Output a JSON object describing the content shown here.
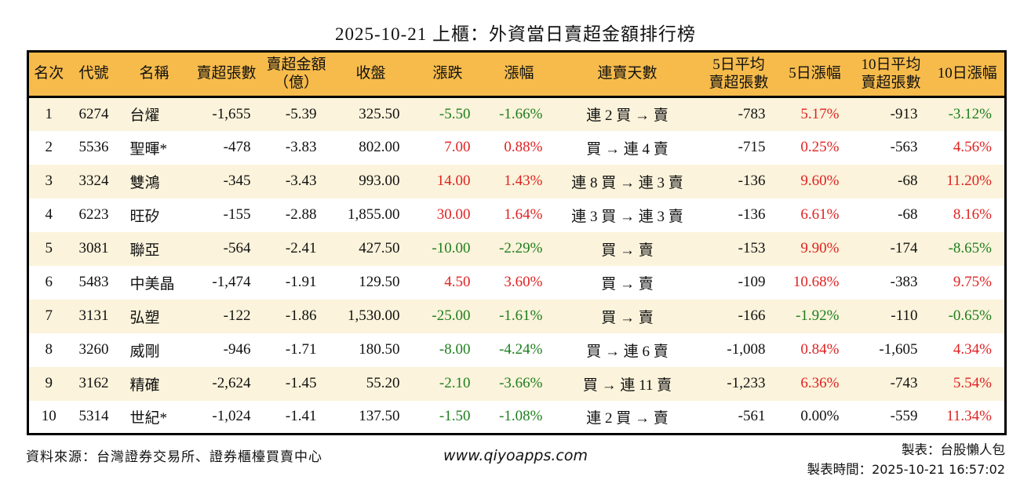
{
  "title": "2025-10-21 上櫃：外資當日賣超金額排行榜",
  "colors": {
    "header_bg": "#F6BB4B",
    "row_alt_bg": "#FBF3DB",
    "row_bg": "#FFFFFF",
    "rise_red": "#E02222",
    "fall_green": "#1E7E1E",
    "border_black": "#000000"
  },
  "chart_data": {
    "type": "table",
    "title": "2025-10-21 上櫃：外資當日賣超金額排行榜",
    "columns": [
      {
        "id": "rank",
        "lines": [
          "名次"
        ]
      },
      {
        "id": "code",
        "lines": [
          "代號"
        ]
      },
      {
        "id": "name",
        "lines": [
          "名稱"
        ]
      },
      {
        "id": "sell-volume",
        "lines": [
          "賣超張數"
        ]
      },
      {
        "id": "sell-amount",
        "lines": [
          "賣超金額",
          "（億）"
        ]
      },
      {
        "id": "close",
        "lines": [
          "收盤"
        ]
      },
      {
        "id": "change",
        "lines": [
          "漲跌"
        ]
      },
      {
        "id": "change-pct",
        "lines": [
          "漲幅"
        ]
      },
      {
        "id": "streak",
        "lines": [
          "連賣天數"
        ]
      },
      {
        "id": "avg5-volume",
        "lines": [
          "5日平均",
          "賣超張數"
        ]
      },
      {
        "id": "chg5-pct",
        "lines": [
          "5日漲幅"
        ]
      },
      {
        "id": "avg10-volume",
        "lines": [
          "10日平均",
          "賣超張數"
        ]
      },
      {
        "id": "chg10-pct",
        "lines": [
          "10日漲幅"
        ]
      }
    ],
    "rows": [
      [
        "1",
        "6274",
        "台燿",
        "-1,655",
        "-5.39",
        "325.50",
        "-5.50",
        "-1.66%",
        "連 2 買 → 賣",
        "-783",
        "5.17%",
        "-913",
        "-3.12%"
      ],
      [
        "2",
        "5536",
        "聖暉*",
        "-478",
        "-3.83",
        "802.00",
        "7.00",
        "0.88%",
        "買 → 連 4 賣",
        "-715",
        "0.25%",
        "-563",
        "4.56%"
      ],
      [
        "3",
        "3324",
        "雙鴻",
        "-345",
        "-3.43",
        "993.00",
        "14.00",
        "1.43%",
        "連 8 買 → 連 3 賣",
        "-136",
        "9.60%",
        "-68",
        "11.20%"
      ],
      [
        "4",
        "6223",
        "旺矽",
        "-155",
        "-2.88",
        "1,855.00",
        "30.00",
        "1.64%",
        "連 3 買 → 連 3 賣",
        "-136",
        "6.61%",
        "-68",
        "8.16%"
      ],
      [
        "5",
        "3081",
        "聯亞",
        "-564",
        "-2.41",
        "427.50",
        "-10.00",
        "-2.29%",
        "買 → 賣",
        "-153",
        "9.90%",
        "-174",
        "-8.65%"
      ],
      [
        "6",
        "5483",
        "中美晶",
        "-1,474",
        "-1.91",
        "129.50",
        "4.50",
        "3.60%",
        "買 → 賣",
        "-109",
        "10.68%",
        "-383",
        "9.75%"
      ],
      [
        "7",
        "3131",
        "弘塑",
        "-122",
        "-1.86",
        "1,530.00",
        "-25.00",
        "-1.61%",
        "買 → 賣",
        "-166",
        "-1.92%",
        "-110",
        "-0.65%"
      ],
      [
        "8",
        "3260",
        "威剛",
        "-946",
        "-1.71",
        "180.50",
        "-8.00",
        "-4.24%",
        "買 → 連 6 賣",
        "-1,008",
        "0.84%",
        "-1,605",
        "4.34%"
      ],
      [
        "9",
        "3162",
        "精確",
        "-2,624",
        "-1.45",
        "55.20",
        "-2.10",
        "-3.66%",
        "買 → 連 11 賣",
        "-1,233",
        "6.36%",
        "-743",
        "5.54%"
      ],
      [
        "10",
        "5314",
        "世紀*",
        "-1,024",
        "-1.41",
        "137.50",
        "-1.50",
        "-1.08%",
        "連 2 買 → 賣",
        "-561",
        "0.00%",
        "-559",
        "11.34%"
      ]
    ]
  },
  "footer": {
    "source": "資料來源：台灣證券交易所、證券櫃檯買賣中心",
    "site_url": "www.qiyoapps.com",
    "made_by": "製表：台股懶人包",
    "made_at_label": "製表時間：",
    "made_at_value": "2025-10-21 16:57:02"
  }
}
